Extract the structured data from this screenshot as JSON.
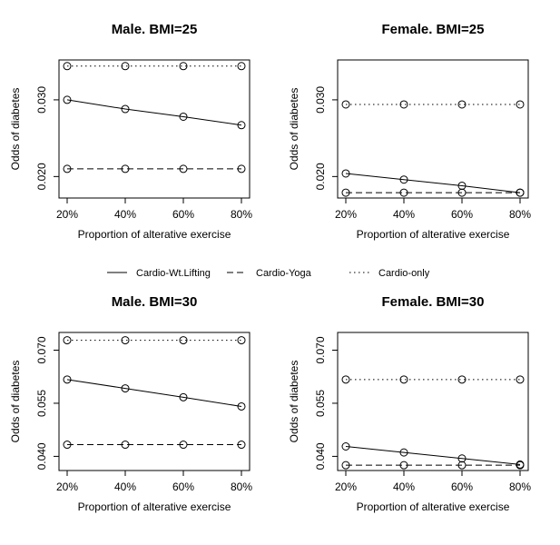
{
  "legend": [
    {
      "label": "Cardio-Wt.Lifting",
      "style": "solid"
    },
    {
      "label": "Cardio-Yoga",
      "style": "dashed"
    },
    {
      "label": "Cardio-only",
      "style": "dotted"
    }
  ],
  "chart_data": [
    {
      "type": "line",
      "title": "Male. BMI=25",
      "xlabel": "Proportion of alterative exercise",
      "ylabel": "Odds of diabetes",
      "categories": [
        "20%",
        "40%",
        "60%",
        "80%"
      ],
      "yticks": [
        0.02,
        0.03
      ],
      "ytick_labels": [
        "0.020",
        "0.030"
      ],
      "ylim": [
        0.0172,
        0.0352
      ],
      "series": [
        {
          "name": "Cardio-Wt.Lifting",
          "style": "solid",
          "values": [
            0.03,
            0.0288,
            0.0278,
            0.0267
          ]
        },
        {
          "name": "Cardio-Yoga",
          "style": "dashed",
          "values": [
            0.021,
            0.021,
            0.021,
            0.021
          ]
        },
        {
          "name": "Cardio-only",
          "style": "dotted",
          "values": [
            0.0344,
            0.0344,
            0.0344,
            0.0344
          ]
        }
      ]
    },
    {
      "type": "line",
      "title": "Female. BMI=25",
      "xlabel": "Proportion of alterative exercise",
      "ylabel": "Odds of diabetes",
      "categories": [
        "20%",
        "40%",
        "60%",
        "80%"
      ],
      "yticks": [
        0.02,
        0.03
      ],
      "ytick_labels": [
        "0.020",
        "0.030"
      ],
      "ylim": [
        0.0172,
        0.0352
      ],
      "series": [
        {
          "name": "Cardio-Wt.Lifting",
          "style": "solid",
          "values": [
            0.0204,
            0.0196,
            0.0188,
            0.0179
          ]
        },
        {
          "name": "Cardio-Yoga",
          "style": "dashed",
          "values": [
            0.0179,
            0.0179,
            0.0179,
            0.0179
          ]
        },
        {
          "name": "Cardio-only",
          "style": "dotted",
          "values": [
            0.0294,
            0.0294,
            0.0294,
            0.0294
          ]
        }
      ]
    },
    {
      "type": "line",
      "title": "Male. BMI=30",
      "xlabel": "Proportion of alterative exercise",
      "ylabel": "Odds of diabetes",
      "categories": [
        "20%",
        "40%",
        "60%",
        "80%"
      ],
      "yticks": [
        0.04,
        0.055,
        0.07
      ],
      "ytick_labels": [
        "0.040",
        "0.055",
        "0.070"
      ],
      "ylim": [
        0.036,
        0.075
      ],
      "series": [
        {
          "name": "Cardio-Wt.Lifting",
          "style": "solid",
          "values": [
            0.0617,
            0.0592,
            0.0567,
            0.0541
          ]
        },
        {
          "name": "Cardio-Yoga",
          "style": "dashed",
          "values": [
            0.0433,
            0.0433,
            0.0433,
            0.0433
          ]
        },
        {
          "name": "Cardio-only",
          "style": "dotted",
          "values": [
            0.0728,
            0.0728,
            0.0728,
            0.0728
          ]
        }
      ]
    },
    {
      "type": "line",
      "title": "Female. BMI=30",
      "xlabel": "Proportion of alterative exercise",
      "ylabel": "Odds of diabetes",
      "categories": [
        "20%",
        "40%",
        "60%",
        "80%"
      ],
      "yticks": [
        0.04,
        0.055,
        0.07
      ],
      "ytick_labels": [
        "0.040",
        "0.055",
        "0.070"
      ],
      "ylim": [
        0.036,
        0.075
      ],
      "series": [
        {
          "name": "Cardio-Wt.Lifting",
          "style": "solid",
          "values": [
            0.0428,
            0.0411,
            0.0394,
            0.0377
          ]
        },
        {
          "name": "Cardio-Yoga",
          "style": "dashed",
          "values": [
            0.0375,
            0.0375,
            0.0375,
            0.0375
          ]
        },
        {
          "name": "Cardio-only",
          "style": "dotted",
          "values": [
            0.0617,
            0.0617,
            0.0617,
            0.0617
          ]
        }
      ]
    }
  ]
}
